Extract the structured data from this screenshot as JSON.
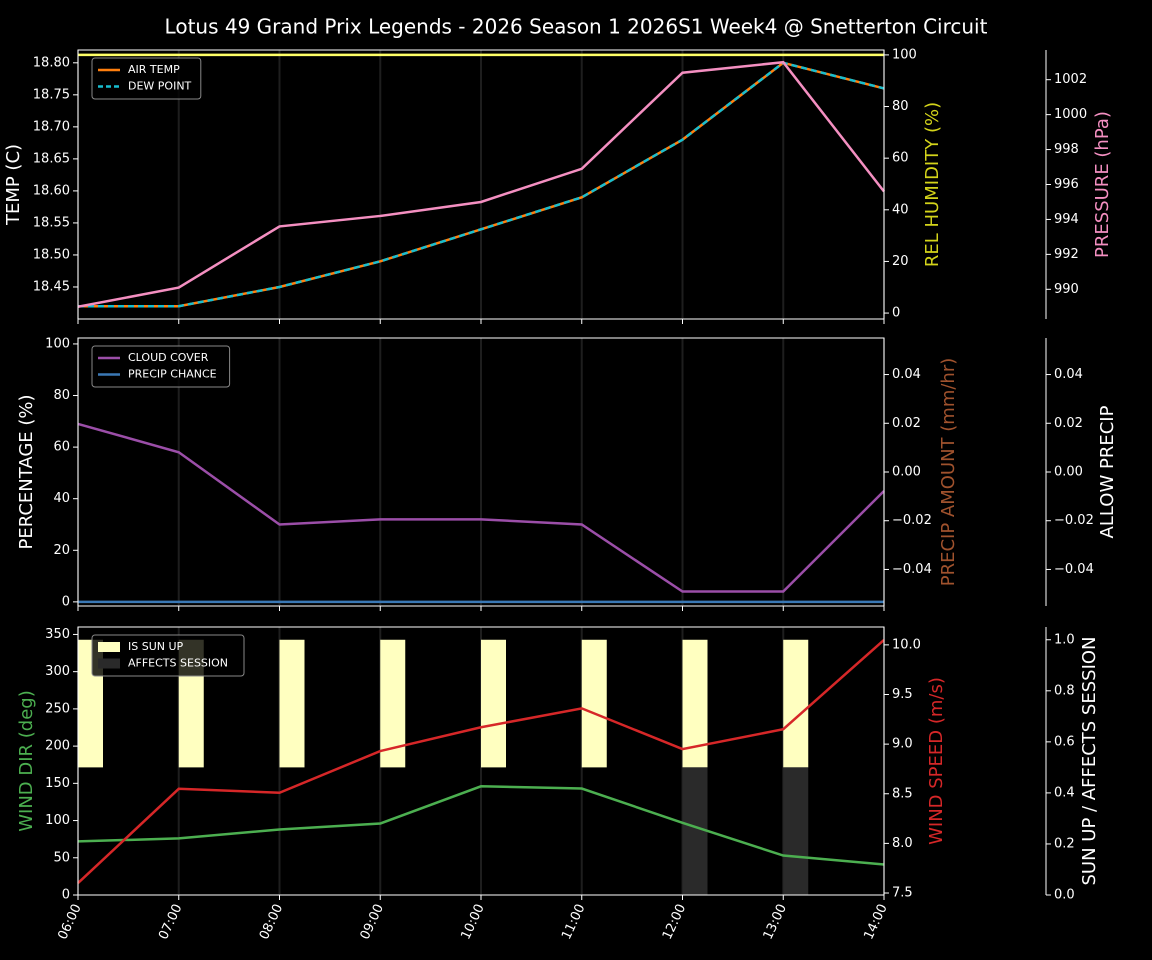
{
  "title": "Lotus 49 Grand Prix Legends - 2026 Season 1 2026S1 Week4 @ Snetterton Circuit",
  "chart_data": [
    {
      "type": "line",
      "grid": "x",
      "legend": "upper left",
      "ylabel": "TEMP (C)",
      "ylabel_color": "#ffffff",
      "y2label": "REL HUMIDITY (%)",
      "y2label_color": "#d4d41a",
      "y3label": "PRESSURE (hPa)",
      "y3label_color": "#f48fc1",
      "ylim": [
        18.4,
        18.82
      ],
      "yticks": [
        18.45,
        {
          "value": 18.5,
          "label": "18.50"
        },
        18.55,
        {
          "value": 18.6,
          "label": "18.60"
        },
        18.65,
        {
          "value": 18.7,
          "label": "18.70"
        },
        18.75,
        {
          "value": 18.8,
          "label": "18.80"
        }
      ],
      "y2lim": [
        -2.3,
        101.9
      ],
      "y2ticks": [
        0,
        20,
        40,
        60,
        80,
        100
      ],
      "y3lim": [
        988.3,
        1003.7
      ],
      "y3ticks": [
        990,
        992,
        994,
        996,
        998,
        1000,
        1002
      ],
      "series": [
        {
          "name": "AIR TEMP",
          "color": "#ff7f0e",
          "values": [
            18.42,
            18.42,
            18.45,
            18.49,
            18.54,
            18.59,
            18.68,
            18.8,
            18.76
          ]
        },
        {
          "name": "DEW POINT",
          "color": "#17becf",
          "dashed": true,
          "values": [
            18.42,
            18.42,
            18.45,
            18.49,
            18.54,
            18.59,
            18.68,
            18.8,
            18.76
          ]
        },
        {
          "axis": "y2",
          "color": "#ffff66",
          "values": [
            100,
            100,
            100,
            100,
            100,
            100,
            100,
            100,
            100
          ]
        },
        {
          "axis": "y3",
          "color": "#f48fc1",
          "values": [
            989.0,
            990.1,
            993.6,
            994.2,
            995.0,
            996.9,
            1002.4,
            1003.0,
            995.6
          ]
        }
      ]
    },
    {
      "type": "line",
      "grid": "x",
      "legend": "upper left",
      "ylabel": "PERCENTAGE (%)",
      "ylabel_color": "#ffffff",
      "y2label": "PRECIP AMOUNT (mm/hr)",
      "y2label_color": "#a0522d",
      "y3label": "ALLOW PRECIP",
      "y3label_color": "#ffffff",
      "ylim": [
        -1.6,
        102.3
      ],
      "yticks": [
        0,
        20,
        40,
        60,
        80,
        100
      ],
      "y2lim": [
        -0.055,
        0.055
      ],
      "y2ticks": [
        {
          "value": -0.04,
          "label": "−0.04"
        },
        {
          "value": -0.02,
          "label": "−0.02"
        },
        {
          "value": 0,
          "label": "0.00"
        },
        0.02,
        0.04
      ],
      "y3lim": [
        -0.055,
        0.055
      ],
      "y3ticks": [
        {
          "value": -0.04,
          "label": "−0.04"
        },
        {
          "value": -0.02,
          "label": "−0.02"
        },
        {
          "value": 0,
          "label": "0.00"
        },
        0.02,
        0.04
      ],
      "series": [
        {
          "name": "CLOUD COVER",
          "color": "#9b4ea8",
          "values": [
            69,
            58,
            30,
            32,
            32,
            30,
            4,
            4,
            43
          ]
        },
        {
          "name": "PRECIP CHANCE",
          "color": "#3a78b5",
          "values": [
            0,
            0,
            0,
            0,
            0,
            0,
            0,
            0,
            0
          ]
        }
      ]
    },
    {
      "type": "line",
      "grid": "x",
      "legend": "upper left",
      "categories": [
        "06:00",
        "07:00",
        "08:00",
        "09:00",
        "10:00",
        "11:00",
        "12:00",
        "13:00",
        "14:00"
      ],
      "ylabel": "WIND DIR (deg)",
      "ylabel_color": "#4caf50",
      "y2label": "WIND SPEED (m/s)",
      "y2label_color": "#d62728",
      "y3label": "SUN UP / AFFECTS SESSION",
      "y3label_color": "#ffffff",
      "ylim": [
        0,
        360
      ],
      "yticks": [
        0,
        50,
        100,
        150,
        200,
        250,
        300,
        350
      ],
      "y2lim": [
        7.48,
        10.18
      ],
      "y2ticks": [
        7.5,
        {
          "value": 8,
          "label": "8.0"
        },
        8.5,
        {
          "value": 9,
          "label": "9.0"
        },
        9.5,
        {
          "value": 10,
          "label": "10.0"
        }
      ],
      "y3lim": [
        0,
        1.05
      ],
      "y3ticks": [
        {
          "value": 0,
          "label": "0.0"
        },
        0.2,
        0.4,
        0.6,
        0.8,
        {
          "value": 1,
          "label": "1.0"
        }
      ],
      "series": [
        {
          "name": "IS SUN UP",
          "type": "bar",
          "axis": "y3",
          "base": 0.5,
          "color": "#ffffc0",
          "values": [
            1,
            1,
            1,
            1,
            1,
            1,
            1,
            1,
            null
          ]
        },
        {
          "name": "AFFECTS SESSION",
          "type": "bar",
          "axis": "y3",
          "color": "#2a2a2a",
          "values": [
            0,
            0,
            0,
            0,
            0,
            0,
            0.5,
            0.5,
            0
          ]
        },
        {
          "axis": "y",
          "color": "#4caf50",
          "values": [
            72,
            76,
            88,
            96,
            146,
            143,
            97,
            53,
            41
          ]
        },
        {
          "axis": "y2",
          "color": "#d62728",
          "values": [
            7.6,
            8.55,
            8.51,
            8.93,
            9.17,
            9.36,
            8.95,
            9.15,
            10.05
          ]
        }
      ]
    }
  ]
}
